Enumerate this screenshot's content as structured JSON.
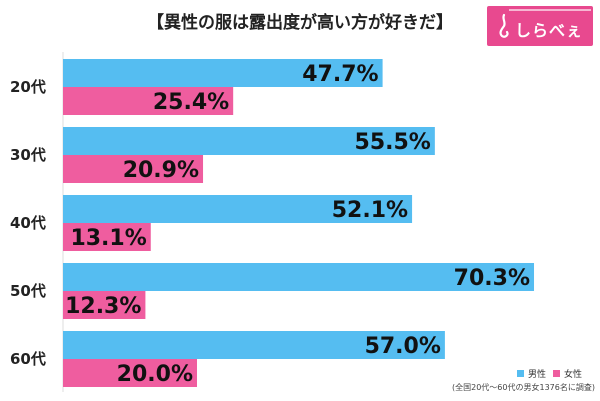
{
  "title": "【異性の服は露出度が高い方が好きだ】",
  "logo": {
    "text": "しらべぇ"
  },
  "legend": {
    "male": "男性",
    "female": "女性"
  },
  "note": "(全国20代～60代の男女1376名に調査)",
  "colors": {
    "male": "#55bdf1",
    "female": "#ef5d9f",
    "logo_bg": "#e8498f"
  },
  "chart_data": {
    "type": "bar",
    "orientation": "horizontal",
    "title": "【異性の服は露出度が高い方が好きだ】",
    "categories": [
      "20代",
      "30代",
      "40代",
      "50代",
      "60代"
    ],
    "series": [
      {
        "name": "男性",
        "values": [
          47.7,
          55.5,
          52.1,
          70.3,
          57.0
        ],
        "labels": [
          "47.7%",
          "55.5%",
          "52.1%",
          "70.3%",
          "57.0%"
        ]
      },
      {
        "name": "女性",
        "values": [
          25.4,
          20.9,
          13.1,
          12.3,
          20.0
        ],
        "labels": [
          "25.4%",
          "20.9%",
          "13.1%",
          "12.3%",
          "20.0%"
        ]
      }
    ],
    "xlim": [
      0,
      100
    ],
    "grid": false,
    "legend_position": "bottom-right"
  }
}
